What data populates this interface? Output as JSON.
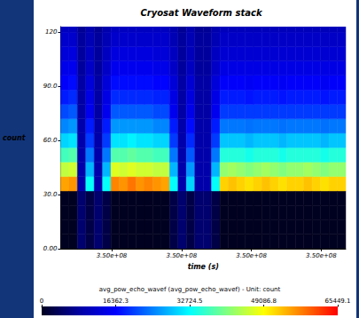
{
  "chart_data": {
    "type": "heatmap",
    "title": "Cryosat Waveform stack",
    "x_label": "time (s)",
    "y_label": "count",
    "xlim": [
      349999927,
      350000335
    ],
    "xticks": [
      {
        "value": 350000000,
        "label": "3.50e+08"
      },
      {
        "value": 350000100,
        "label": "3.50e+08"
      },
      {
        "value": 350000200,
        "label": "3.50e+08"
      },
      {
        "value": 350000300,
        "label": "3.50e+08"
      }
    ],
    "ylim": [
      0,
      123
    ],
    "yticks": [
      {
        "value": 0,
        "label": "0.00"
      },
      {
        "value": 30,
        "label": "30.0"
      },
      {
        "value": 60,
        "label": "60.0"
      },
      {
        "value": 90,
        "label": "90.0"
      },
      120
    ],
    "grid": false,
    "cells": {
      "x_edges": [
        349999927,
        349999939,
        349999951,
        349999963,
        349999975,
        349999987,
        349999999,
        350000011,
        350000023,
        350000035,
        350000047,
        350000059,
        350000071,
        350000083,
        350000095,
        350000107,
        350000119,
        350000131,
        350000143,
        350000155,
        350000167,
        350000179,
        350000191,
        350000203,
        350000215,
        350000227,
        350000239,
        350000251,
        350000263,
        350000275,
        350000287,
        350000299,
        350000311,
        350000323,
        350000335
      ],
      "y_edges": [
        0,
        8,
        16,
        24,
        32,
        40,
        48,
        56,
        64,
        72,
        80,
        88,
        96,
        104,
        112,
        120,
        128
      ],
      "values": [
        [
          0,
          0,
          0,
          0,
          55000,
          45000,
          37000,
          30000,
          25000,
          21000,
          18000,
          16000,
          14500,
          13000,
          12000,
          11000
        ],
        [
          0,
          0,
          0,
          0,
          56000,
          46000,
          38000,
          31000,
          26000,
          22000,
          19000,
          17000,
          15000,
          13500,
          12000,
          11000
        ],
        [
          5000,
          5000,
          5000,
          5000,
          9000,
          9000,
          9000,
          9000,
          9000,
          8500,
          8500,
          8500,
          8000,
          8000,
          8000,
          7500
        ],
        [
          2500,
          2500,
          2500,
          2500,
          33000,
          28000,
          24000,
          20000,
          18000,
          15000,
          14000,
          13000,
          11500,
          11000,
          10000,
          9500
        ],
        [
          5000,
          5000,
          5000,
          5000,
          9000,
          9000,
          9000,
          9000,
          9000,
          8500,
          8500,
          8500,
          8000,
          8000,
          8000,
          7500
        ],
        [
          2500,
          2500,
          2500,
          2500,
          33000,
          28000,
          24000,
          20000,
          18000,
          15000,
          14000,
          13000,
          11500,
          11000,
          10000,
          9500
        ],
        [
          0,
          0,
          0,
          0,
          57000,
          47000,
          38000,
          31000,
          26000,
          22000,
          19000,
          17000,
          15000,
          13500,
          12000,
          11000
        ],
        [
          0,
          0,
          0,
          0,
          56000,
          46000,
          38000,
          31000,
          26000,
          22000,
          19000,
          17000,
          15000,
          13500,
          12000,
          11000
        ],
        [
          0,
          0,
          0,
          0,
          58000,
          47000,
          39000,
          32000,
          26000,
          22000,
          19000,
          17000,
          15000,
          13500,
          12000,
          11000
        ],
        [
          0,
          0,
          0,
          0,
          56000,
          46000,
          38000,
          31000,
          26000,
          22000,
          19000,
          17000,
          15000,
          13500,
          12000,
          11000
        ],
        [
          0,
          0,
          0,
          0,
          57000,
          46000,
          38000,
          31000,
          26000,
          22000,
          19000,
          17000,
          15000,
          13500,
          12000,
          11000
        ],
        [
          0,
          0,
          0,
          0,
          56000,
          45000,
          37000,
          30000,
          25000,
          21000,
          18500,
          16500,
          14500,
          13000,
          12000,
          11000
        ],
        [
          0,
          0,
          0,
          0,
          55000,
          45000,
          37000,
          30000,
          25000,
          21000,
          18500,
          16500,
          14500,
          13000,
          12000,
          11000
        ],
        [
          2500,
          2500,
          2500,
          2500,
          33000,
          28000,
          24000,
          20000,
          18000,
          15000,
          14000,
          13000,
          11500,
          11000,
          10000,
          9500
        ],
        [
          5000,
          5000,
          5000,
          5000,
          9000,
          9000,
          9000,
          9000,
          9000,
          8500,
          8500,
          8500,
          8000,
          8000,
          8000,
          7500
        ],
        [
          2500,
          2500,
          2500,
          2500,
          30000,
          26000,
          22000,
          19000,
          17000,
          14500,
          13500,
          12500,
          11000,
          10500,
          10000,
          9500
        ],
        [
          5000,
          5000,
          5000,
          5000,
          9000,
          9000,
          9000,
          9000,
          9000,
          8500,
          8500,
          8500,
          8000,
          8000,
          8000,
          7500
        ],
        [
          5000,
          5000,
          5000,
          5000,
          9000,
          9000,
          9000,
          9000,
          9000,
          8500,
          8500,
          8500,
          8000,
          8000,
          8000,
          7500
        ],
        [
          2500,
          2500,
          2500,
          2500,
          33000,
          28000,
          24000,
          20000,
          18000,
          15000,
          14000,
          13000,
          11500,
          11000,
          10000,
          9500
        ],
        [
          0,
          0,
          0,
          0,
          52000,
          42000,
          35000,
          29000,
          24000,
          20000,
          18000,
          16000,
          14000,
          12500,
          11500,
          10500
        ],
        [
          0,
          0,
          0,
          0,
          53000,
          43000,
          35000,
          29000,
          24000,
          20000,
          18000,
          16000,
          14000,
          12500,
          11500,
          10500
        ],
        [
          0,
          0,
          0,
          0,
          52000,
          42000,
          35000,
          29000,
          24000,
          20000,
          18000,
          16000,
          14000,
          12500,
          11500,
          10500
        ],
        [
          0,
          0,
          0,
          0,
          51000,
          41000,
          34000,
          28000,
          23500,
          20000,
          17500,
          15500,
          14000,
          12500,
          11500,
          10500
        ],
        [
          0,
          0,
          0,
          0,
          52000,
          42000,
          35000,
          29000,
          24000,
          20000,
          18000,
          16000,
          14000,
          12500,
          11500,
          10500
        ],
        [
          0,
          0,
          0,
          0,
          53000,
          43000,
          35000,
          29000,
          24000,
          20000,
          18000,
          16000,
          14000,
          12500,
          11500,
          10500
        ],
        [
          0,
          0,
          0,
          0,
          52000,
          42000,
          35000,
          29000,
          24000,
          20000,
          18000,
          16000,
          14000,
          12500,
          11500,
          10500
        ],
        [
          0,
          0,
          0,
          0,
          51000,
          41000,
          34000,
          28000,
          23500,
          20000,
          17500,
          15500,
          14000,
          12500,
          11500,
          10500
        ],
        [
          0,
          0,
          0,
          0,
          52000,
          42000,
          35000,
          29000,
          24000,
          20000,
          18000,
          16000,
          14000,
          12500,
          11500,
          10500
        ],
        [
          0,
          0,
          0,
          0,
          52000,
          42000,
          35000,
          29000,
          24000,
          20000,
          18000,
          16000,
          14000,
          12500,
          11500,
          10500
        ],
        [
          0,
          0,
          0,
          0,
          53000,
          43000,
          35000,
          29000,
          24000,
          20000,
          18000,
          16000,
          14000,
          12500,
          11500,
          10500
        ],
        [
          0,
          0,
          0,
          0,
          52000,
          42000,
          35000,
          29000,
          24000,
          20000,
          18000,
          16000,
          14000,
          12500,
          11500,
          10500
        ],
        [
          0,
          0,
          0,
          0,
          51000,
          41000,
          34000,
          28000,
          23500,
          20000,
          17500,
          15500,
          14000,
          12500,
          11500,
          10500
        ],
        [
          0,
          0,
          0,
          0,
          52000,
          42000,
          35000,
          29000,
          24000,
          20000,
          18000,
          16000,
          14000,
          12500,
          11500,
          10500
        ],
        [
          0,
          0,
          0,
          0,
          52000,
          42000,
          35000,
          29000,
          24000,
          20000,
          18000,
          16000,
          14000,
          12500,
          11500,
          10500
        ]
      ]
    },
    "colorbar": {
      "label": "avg_pow_echo_wavef (avg_pow_echo_wavef) - Unit: count",
      "range": [
        0,
        65449.1
      ],
      "ticks": [
        0,
        16362.3,
        32724.5,
        49086.8,
        65449.1
      ]
    }
  }
}
